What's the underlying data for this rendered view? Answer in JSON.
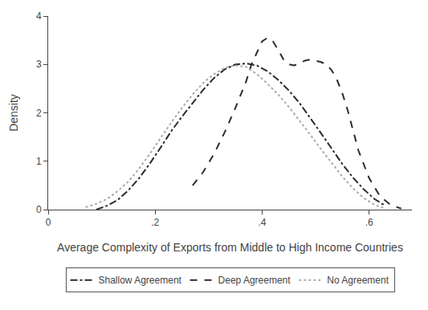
{
  "chart_data": {
    "type": "line",
    "xlabel": "Average Complexity of Exports from Middle to High Income Countries",
    "ylabel": "Density",
    "xlim": [
      0,
      0.68
    ],
    "ylim": [
      0,
      4
    ],
    "xticks": [
      0,
      {
        "value": 0.2,
        "label": ".2"
      },
      {
        "value": 0.4,
        "label": ".4"
      },
      {
        "value": 0.6,
        "label": ".6"
      }
    ],
    "yticks": [
      0,
      1,
      2,
      3,
      4
    ],
    "grid": false,
    "legend": "bottom",
    "series": [
      {
        "name": "Shallow Agreement",
        "color": "#2b2b2b",
        "line_style": "dashdot",
        "x": [
          0.09,
          0.11,
          0.13,
          0.15,
          0.17,
          0.19,
          0.21,
          0.23,
          0.25,
          0.27,
          0.29,
          0.31,
          0.33,
          0.35,
          0.37,
          0.39,
          0.41,
          0.43,
          0.45,
          0.47,
          0.49,
          0.51,
          0.53,
          0.55,
          0.57,
          0.59,
          0.61,
          0.63
        ],
        "values": [
          0.0,
          0.08,
          0.2,
          0.4,
          0.65,
          0.95,
          1.28,
          1.62,
          1.92,
          2.2,
          2.48,
          2.72,
          2.9,
          3.0,
          3.02,
          2.98,
          2.86,
          2.68,
          2.46,
          2.2,
          1.9,
          1.58,
          1.26,
          0.94,
          0.66,
          0.42,
          0.22,
          0.08
        ]
      },
      {
        "name": "Deep Agreement",
        "color": "#2b2b2b",
        "line_style": "dash",
        "x": [
          0.27,
          0.29,
          0.31,
          0.33,
          0.35,
          0.37,
          0.38,
          0.39,
          0.4,
          0.41,
          0.42,
          0.43,
          0.44,
          0.45,
          0.46,
          0.47,
          0.48,
          0.49,
          0.5,
          0.51,
          0.52,
          0.53,
          0.54,
          0.55,
          0.56,
          0.57,
          0.58,
          0.6,
          0.62,
          0.64,
          0.66
        ],
        "values": [
          0.5,
          0.78,
          1.15,
          1.6,
          2.1,
          2.65,
          3.0,
          3.25,
          3.48,
          3.55,
          3.48,
          3.3,
          3.1,
          3.0,
          2.98,
          3.02,
          3.08,
          3.1,
          3.08,
          3.05,
          3.0,
          2.88,
          2.68,
          2.4,
          2.05,
          1.65,
          1.22,
          0.65,
          0.28,
          0.1,
          0.02
        ]
      },
      {
        "name": "No Agreement",
        "color": "#aaaaaa",
        "line_style": "dot",
        "x": [
          0.07,
          0.09,
          0.11,
          0.13,
          0.15,
          0.17,
          0.19,
          0.21,
          0.23,
          0.25,
          0.27,
          0.29,
          0.31,
          0.33,
          0.35,
          0.37,
          0.39,
          0.41,
          0.43,
          0.45,
          0.47,
          0.49,
          0.51,
          0.53,
          0.55,
          0.57,
          0.59,
          0.61,
          0.63
        ],
        "values": [
          0.05,
          0.12,
          0.22,
          0.38,
          0.58,
          0.85,
          1.15,
          1.48,
          1.8,
          2.1,
          2.38,
          2.62,
          2.8,
          2.93,
          2.98,
          2.95,
          2.8,
          2.6,
          2.38,
          2.12,
          1.84,
          1.55,
          1.25,
          0.96,
          0.68,
          0.44,
          0.24,
          0.1,
          0.02
        ]
      }
    ]
  }
}
